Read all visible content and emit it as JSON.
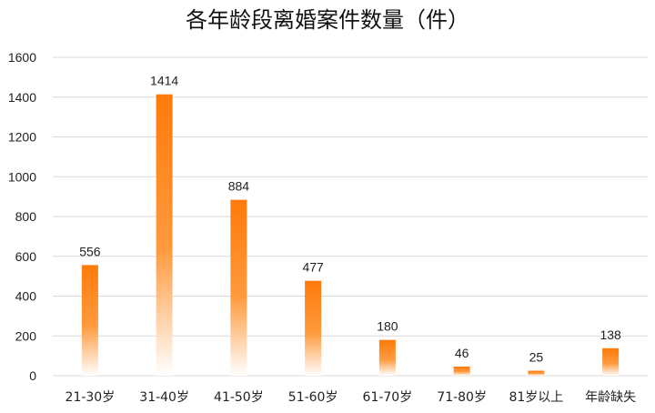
{
  "chart_data": {
    "type": "bar",
    "title": "各年龄段离婚案件数量（件）",
    "xlabel": "",
    "ylabel": "",
    "categories": [
      "21-30岁",
      "31-40岁",
      "41-50岁",
      "51-60岁",
      "61-70岁",
      "71-80岁",
      "81岁以上",
      "年龄缺失"
    ],
    "values": [
      556,
      1414,
      884,
      477,
      180,
      46,
      25,
      138
    ],
    "data_labels": [
      "556",
      "1414",
      "884",
      "477",
      "180",
      "46",
      "25",
      "138"
    ],
    "ylim": [
      0,
      1600
    ],
    "yticks": [
      0,
      200,
      400,
      600,
      800,
      1000,
      1200,
      1400,
      1600
    ],
    "ytick_labels": [
      "0",
      "200",
      "400",
      "600",
      "800",
      "1000",
      "1200",
      "1400",
      "1600"
    ],
    "grid": true,
    "legend": "none",
    "bar_color": "#ff7a0a",
    "bar_fade_color": "#ffffff"
  }
}
